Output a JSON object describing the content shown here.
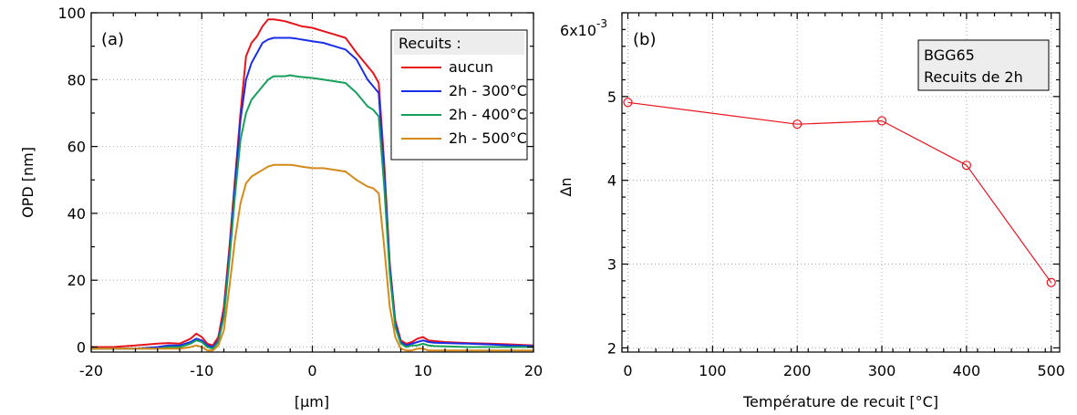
{
  "chart_data": [
    {
      "type": "line",
      "panel_label": "(a)",
      "xlabel": "[µm]",
      "ylabel": "OPD [nm]",
      "xlim": [
        -20,
        20
      ],
      "ylim": [
        -1.5,
        100
      ],
      "xticks": [
        "-20",
        "-10",
        "0",
        "10",
        "20"
      ],
      "xtick_values": [
        -20,
        -10,
        0,
        10,
        20
      ],
      "yticks": [
        "0",
        "20",
        "40",
        "60",
        "80",
        "100"
      ],
      "ytick_values": [
        0,
        20,
        40,
        60,
        80,
        100
      ],
      "grid": true,
      "legend_title": "Recuits :",
      "legend_position": "top-right",
      "x": [
        -20,
        -18,
        -16,
        -14,
        -13,
        -12,
        -11,
        -10.5,
        -10,
        -9.5,
        -9,
        -8.5,
        -8,
        -7.5,
        -7,
        -6.5,
        -6,
        -5.5,
        -5,
        -4.5,
        -4,
        -3.5,
        -3,
        -2.5,
        -2,
        -1.5,
        -1,
        0,
        1,
        2,
        3,
        4,
        5,
        5.5,
        6,
        6.5,
        7,
        7.5,
        8,
        8.5,
        9,
        9.5,
        10,
        10.5,
        11,
        12,
        14,
        16,
        18,
        20
      ],
      "series": [
        {
          "name": "aucun",
          "color": "#e8141c",
          "values": [
            0,
            0,
            0.5,
            1,
            1.2,
            1,
            2.5,
            4,
            3,
            1,
            0.5,
            3,
            12,
            30,
            50,
            70,
            87,
            91,
            93,
            96,
            98,
            98,
            97.8,
            97.5,
            97,
            96.5,
            96,
            95.5,
            94.5,
            93.5,
            92.5,
            88,
            84,
            82,
            79,
            55,
            25,
            8,
            2,
            1,
            1.5,
            2.5,
            3,
            2,
            1.8,
            1.5,
            1.2,
            1,
            0.8,
            0.5
          ]
        },
        {
          "name": "2h - 300°C",
          "color": "#1a2ee8",
          "values": [
            -0.5,
            -0.5,
            -0.5,
            0,
            0.5,
            0.5,
            1.5,
            2.5,
            2,
            0.5,
            0,
            2,
            10,
            28,
            48,
            68,
            80,
            85,
            88,
            91,
            92,
            92.5,
            92.5,
            92.5,
            92.5,
            92.3,
            92,
            91.5,
            91,
            90,
            89,
            86,
            80,
            78,
            76,
            52,
            24,
            7,
            1.5,
            0.5,
            1,
            1.5,
            2,
            1.5,
            1.3,
            1.2,
            1,
            0.8,
            0.5,
            0.3
          ]
        },
        {
          "name": "2h - 400°C",
          "color": "#16a05a",
          "values": [
            -0.5,
            -0.5,
            -0.5,
            -0.5,
            0,
            0,
            1,
            2,
            1.5,
            0,
            -0.5,
            1.5,
            9,
            26,
            45,
            62,
            70,
            74,
            76,
            78,
            80,
            81,
            81,
            81,
            81.3,
            81,
            80.8,
            80.5,
            80,
            79.5,
            79,
            76,
            72,
            71,
            69,
            48,
            22,
            6,
            1,
            0,
            0.5,
            0.5,
            1,
            0.5,
            0.3,
            0.2,
            0,
            0,
            0,
            0
          ]
        },
        {
          "name": "2h - 500°C",
          "color": "#d48a1a",
          "values": [
            -0.5,
            -0.5,
            -0.5,
            -0.5,
            -0.5,
            -0.5,
            0,
            0.5,
            0,
            -1,
            -1,
            0.5,
            5,
            18,
            32,
            43,
            49,
            51,
            52,
            53,
            54,
            54.5,
            54.5,
            54.5,
            54.5,
            54.3,
            54,
            53.5,
            53.5,
            53,
            52.5,
            50,
            48,
            47.5,
            46,
            30,
            12,
            3,
            -0.5,
            -1,
            -1,
            -0.5,
            -0.5,
            -1,
            -1,
            -1,
            -1,
            -1,
            -1,
            -1
          ]
        }
      ]
    },
    {
      "type": "line",
      "panel_label": "(b)",
      "xlabel": "Température de recuit [°C]",
      "ylabel": "Δn",
      "y_exponent": "6x10",
      "y_exponent_power": "-3",
      "xlim": [
        -7,
        510
      ],
      "ylim": [
        1.95,
        6
      ],
      "xticks": [
        "0",
        "100",
        "200",
        "300",
        "400",
        "500"
      ],
      "xtick_values": [
        0,
        100,
        200,
        300,
        400,
        500
      ],
      "yticks": [
        "2",
        "3",
        "4",
        "5"
      ],
      "ytick_values": [
        2,
        3,
        4,
        5
      ],
      "grid": true,
      "annotation": [
        "BGG65",
        "Recuits de 2h"
      ],
      "x": [
        0,
        200,
        300,
        400,
        500
      ],
      "series": [
        {
          "color": "#e8141c",
          "marker": "circle",
          "values": [
            4.93,
            4.67,
            4.71,
            4.18,
            2.78
          ]
        }
      ]
    }
  ]
}
